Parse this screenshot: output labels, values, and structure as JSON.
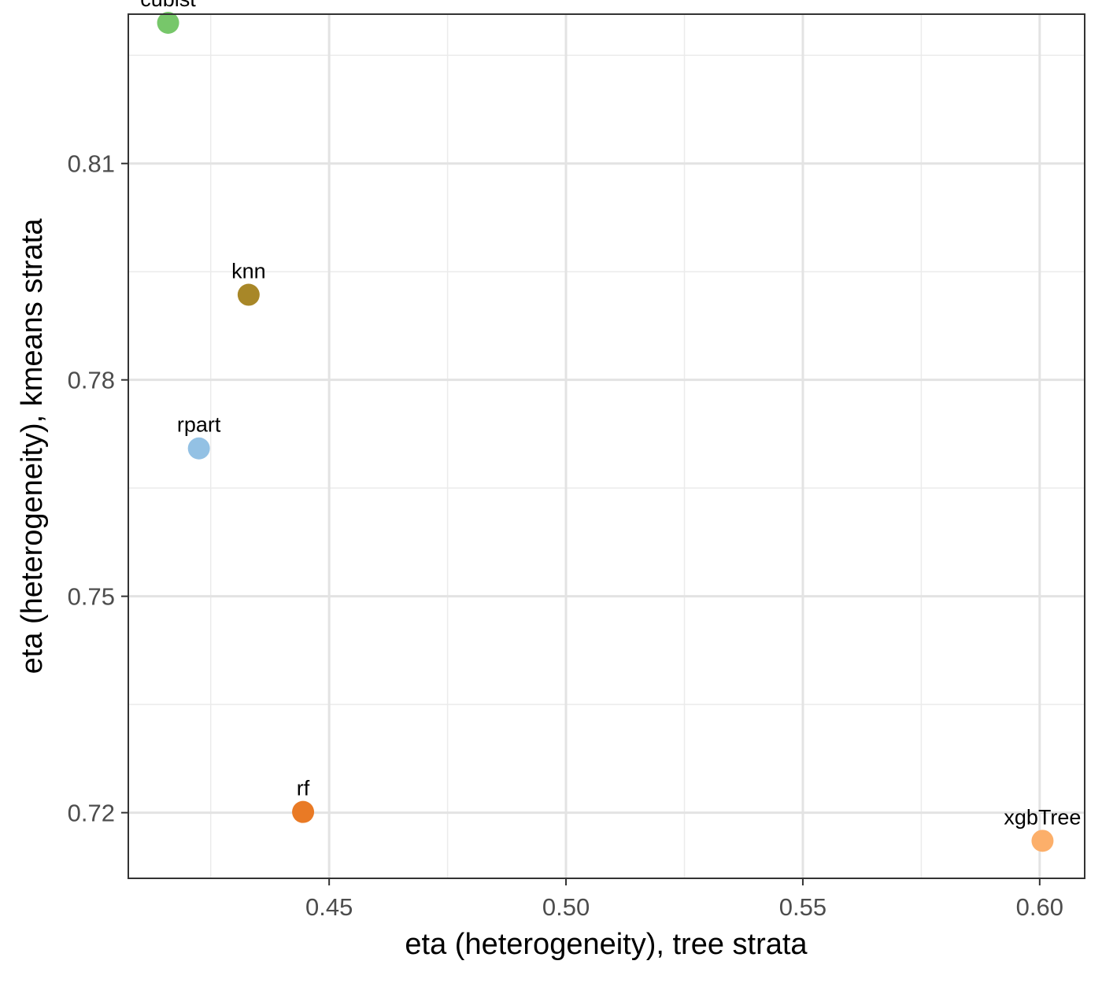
{
  "chart_data": {
    "type": "scatter",
    "title": "",
    "xlabel": "eta (heterogeneity), tree strata",
    "ylabel": "eta (heterogeneity), kmeans strata",
    "xlim": [
      0.4076,
      0.6095
    ],
    "ylim": [
      0.7109,
      0.8307
    ],
    "x_ticks": [
      0.45,
      0.5,
      0.55,
      0.6
    ],
    "x_tick_labels": [
      "0.45",
      "0.50",
      "0.55",
      "0.60"
    ],
    "y_ticks": [
      0.72,
      0.75,
      0.78,
      0.81
    ],
    "y_tick_labels": [
      "0.72",
      "0.75",
      "0.78",
      "0.81"
    ],
    "grid": true,
    "legend": "none",
    "points": [
      {
        "label": "cubist",
        "x": 0.416,
        "y": 0.8295,
        "color": "#77C76A"
      },
      {
        "label": "knn",
        "x": 0.433,
        "y": 0.7918,
        "color": "#A88728"
      },
      {
        "label": "rpart",
        "x": 0.4225,
        "y": 0.7705,
        "color": "#93C1E4"
      },
      {
        "label": "rf",
        "x": 0.4445,
        "y": 0.7201,
        "color": "#E97A25"
      },
      {
        "label": "xgbTree",
        "x": 0.6006,
        "y": 0.7161,
        "color": "#FCAF6A"
      }
    ]
  }
}
